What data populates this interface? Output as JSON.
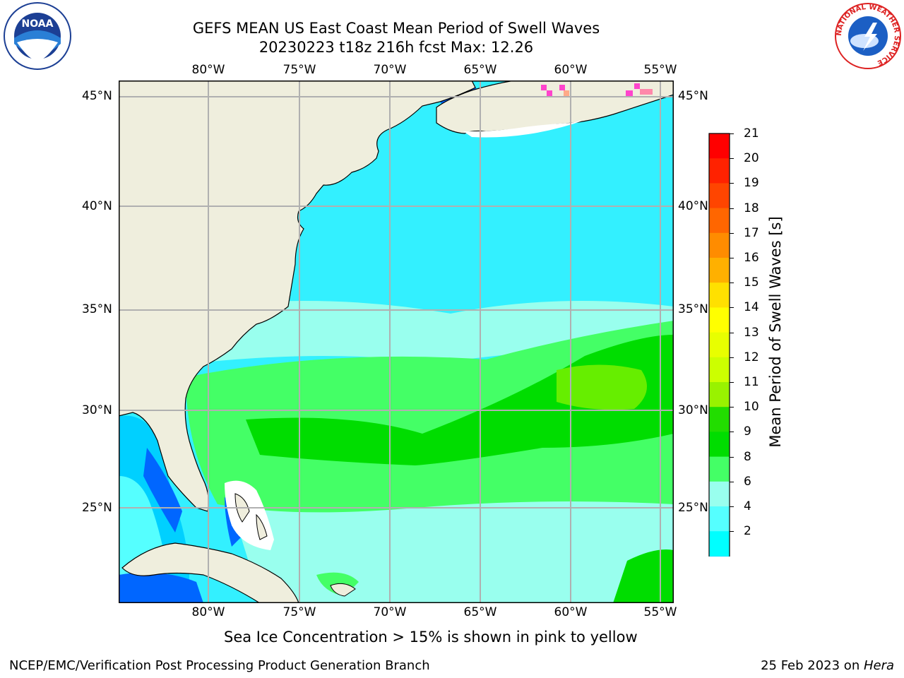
{
  "title": {
    "line1": "GEFS MEAN US East Coast Mean Period of Swell Waves",
    "line2": "20230223 t18z 216h fcst   Max: 12.26"
  },
  "map": {
    "lon_labels": [
      "80°W",
      "75°W",
      "70°W",
      "65°W",
      "60°W",
      "55°W"
    ],
    "lat_labels": [
      "45°N",
      "40°N",
      "35°N",
      "30°N",
      "25°N"
    ],
    "land_color": "#efeedd",
    "grid_color": "#b0b0b0"
  },
  "colorbar": {
    "label": "Mean Period of Swell Waves [s]",
    "ticks": [
      "21",
      "20",
      "19",
      "18",
      "17",
      "16",
      "15",
      "14",
      "13",
      "12",
      "11",
      "10",
      "9",
      "8",
      "6",
      "4",
      "2"
    ],
    "colors": [
      "#ff0000",
      "#ff2200",
      "#ff4500",
      "#ff6600",
      "#ff8c00",
      "#ffb000",
      "#ffe000",
      "#ffff00",
      "#e8ff00",
      "#ccff00",
      "#99f200",
      "#22dd00",
      "#00dd00",
      "#44ff66",
      "#99ffee",
      "#55ffff",
      "#00ffff",
      "#00d0ff",
      "#0066ff",
      "#0000ff"
    ]
  },
  "caption": "Sea Ice Concentration > 15% is shown in pink to yellow",
  "footer": {
    "left": "NCEP/EMC/Verification Post Processing Product Generation Branch",
    "right_date": "25 Feb 2023 on ",
    "right_host": "Hera"
  },
  "logos": {
    "noaa_text": "NOAA",
    "nws_text": "NATIONAL WEATHER SERVICE"
  }
}
